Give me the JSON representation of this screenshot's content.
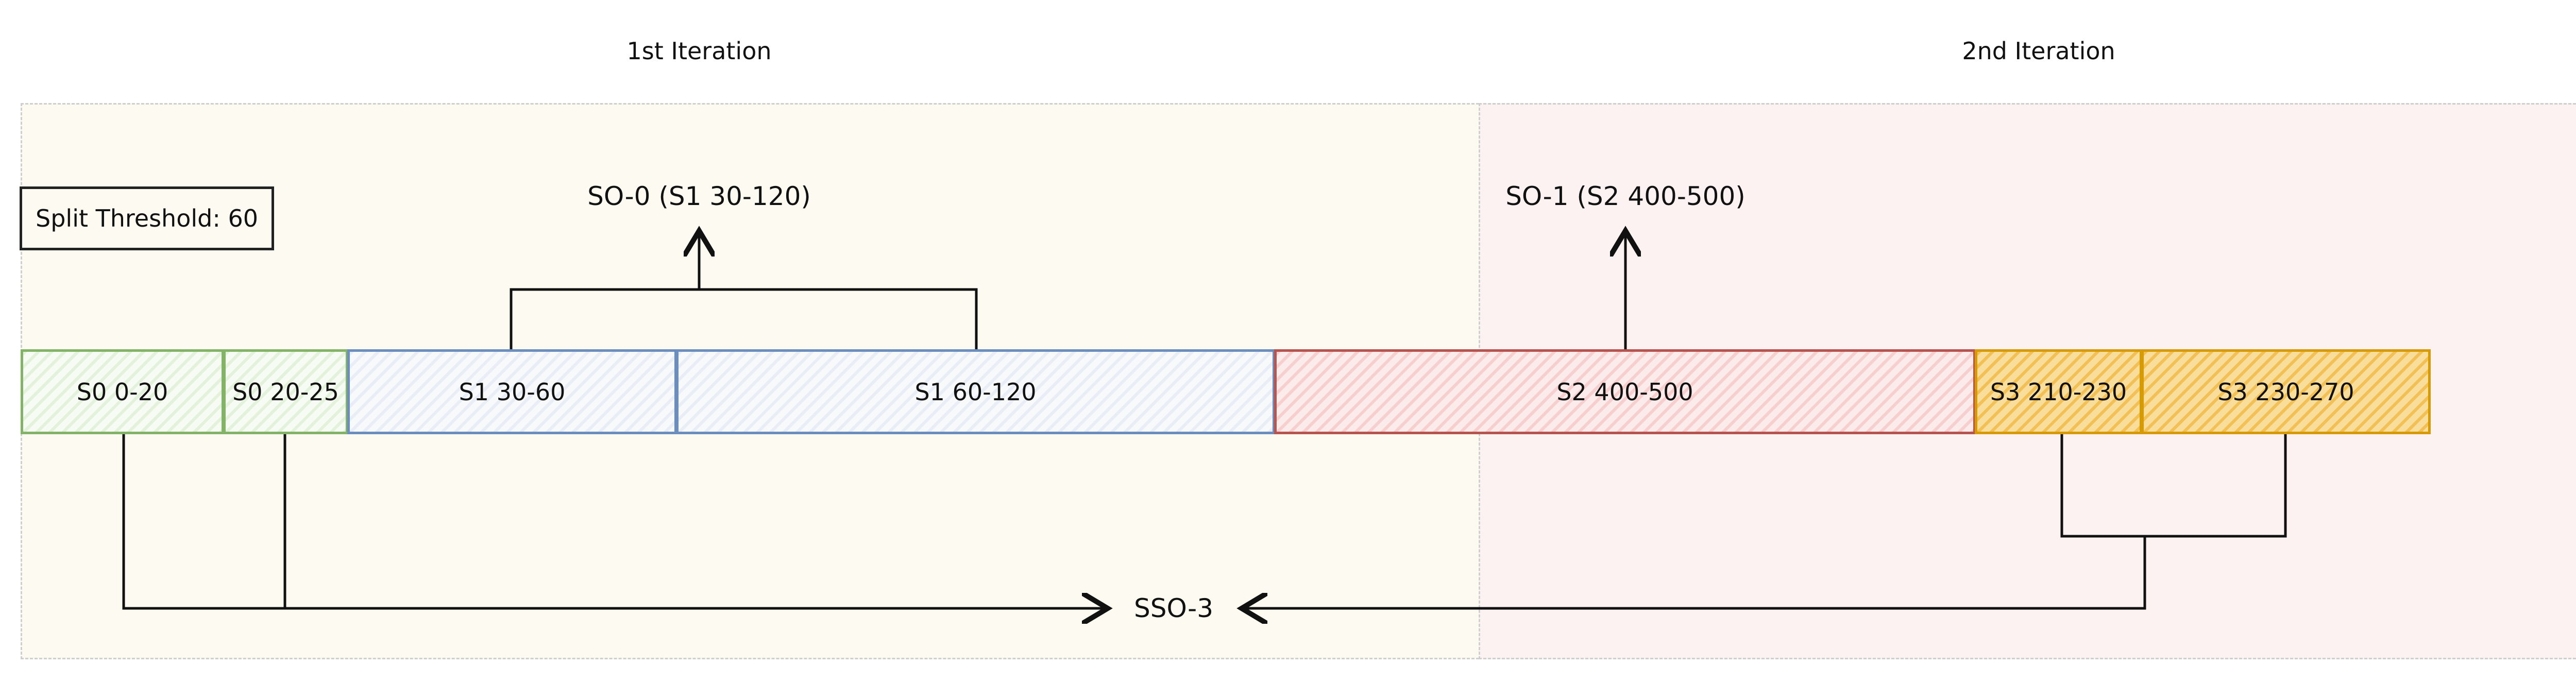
{
  "iterations": {
    "first": {
      "title": "1st Iteration",
      "bg": "#fdfaf2"
    },
    "second": {
      "title": "2nd Iteration",
      "bg": "#fdf2f2"
    }
  },
  "threshold": {
    "label": "Split Threshold: 60"
  },
  "outputs": {
    "so0": "SO-0 (S1 30-120)",
    "so1": "SO-1 (S2 400-500)",
    "sso3": "SSO-3"
  },
  "segments": [
    {
      "id": "s0a",
      "label": "S0 0-20",
      "stroke": "#82b366",
      "fill": "#e4f2dc"
    },
    {
      "id": "s0b",
      "label": "S0 20-25",
      "stroke": "#82b366",
      "fill": "#e4f2dc"
    },
    {
      "id": "s1a",
      "label": "S1 30-60",
      "stroke": "#6c8ebf",
      "fill": "#eef2f8"
    },
    {
      "id": "s1b",
      "label": "S1 60-120",
      "stroke": "#6c8ebf",
      "fill": "#eef2f8"
    },
    {
      "id": "s2",
      "label": "S2 400-500",
      "stroke": "#b85450",
      "fill": "#f9d6d6"
    },
    {
      "id": "s3a",
      "label": "S3 210-230",
      "stroke": "#d79b00",
      "fill": "#f5c96a"
    },
    {
      "id": "s3b",
      "label": "S3 230-270",
      "stroke": "#d79b00",
      "fill": "#f5c96a"
    }
  ]
}
